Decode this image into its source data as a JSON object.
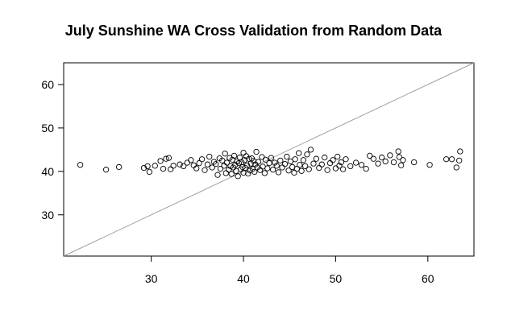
{
  "chart_data": {
    "type": "scatter",
    "title": "July Sunshine WA Cross Validation from Random Data",
    "xlabel": "",
    "ylabel": "",
    "xlim": [
      20.5,
      65
    ],
    "ylim": [
      20.5,
      65
    ],
    "x_ticks": [
      30,
      40,
      50,
      60
    ],
    "y_ticks": [
      30,
      40,
      50,
      60
    ],
    "reference_line": {
      "type": "y=x",
      "color": "#a0a0a0"
    },
    "marker": "open-circle",
    "grid": false,
    "series": [
      {
        "points": [
          [
            22.3,
            41.5
          ],
          [
            25.1,
            40.4
          ],
          [
            26.5,
            41.0
          ],
          [
            29.2,
            40.8
          ],
          [
            29.6,
            41.2
          ],
          [
            29.8,
            39.9
          ],
          [
            30.4,
            41.3
          ],
          [
            31.0,
            42.4
          ],
          [
            31.3,
            40.6
          ],
          [
            31.6,
            42.9
          ],
          [
            31.9,
            43.1
          ],
          [
            32.1,
            40.5
          ],
          [
            32.4,
            41.3
          ],
          [
            33.1,
            41.6
          ],
          [
            33.5,
            41.2
          ],
          [
            33.9,
            42.0
          ],
          [
            34.3,
            42.6
          ],
          [
            34.6,
            41.4
          ],
          [
            34.9,
            40.7
          ],
          [
            35.2,
            41.9
          ],
          [
            35.5,
            42.8
          ],
          [
            35.8,
            40.3
          ],
          [
            36.1,
            41.6
          ],
          [
            36.3,
            43.4
          ],
          [
            36.6,
            40.9
          ],
          [
            36.8,
            42.2
          ],
          [
            37.0,
            41.7
          ],
          [
            37.2,
            39.2
          ],
          [
            37.4,
            43.0
          ],
          [
            37.5,
            40.6
          ],
          [
            37.7,
            42.5
          ],
          [
            37.9,
            41.3
          ],
          [
            38.0,
            44.1
          ],
          [
            38.1,
            39.6
          ],
          [
            38.2,
            42.0
          ],
          [
            38.4,
            40.4
          ],
          [
            38.5,
            43.1
          ],
          [
            38.6,
            41.2
          ],
          [
            38.7,
            39.4
          ],
          [
            38.8,
            42.7
          ],
          [
            38.9,
            40.9
          ],
          [
            39.0,
            43.6
          ],
          [
            39.1,
            41.5
          ],
          [
            39.2,
            40.1
          ],
          [
            39.3,
            42.3
          ],
          [
            39.4,
            38.9
          ],
          [
            39.5,
            41.9
          ],
          [
            39.6,
            43.2
          ],
          [
            39.7,
            40.5
          ],
          [
            39.8,
            42.1
          ],
          [
            39.9,
            41.0
          ],
          [
            40.0,
            44.3
          ],
          [
            40.0,
            39.7
          ],
          [
            40.1,
            42.6
          ],
          [
            40.2,
            40.8
          ],
          [
            40.3,
            43.5
          ],
          [
            40.4,
            41.4
          ],
          [
            40.5,
            39.5
          ],
          [
            40.6,
            42.9
          ],
          [
            40.7,
            40.2
          ],
          [
            40.8,
            41.8
          ],
          [
            40.9,
            43.0
          ],
          [
            41.0,
            40.6
          ],
          [
            41.1,
            42.4
          ],
          [
            41.2,
            39.9
          ],
          [
            41.3,
            41.6
          ],
          [
            41.4,
            44.5
          ],
          [
            41.5,
            40.9
          ],
          [
            41.6,
            42.2
          ],
          [
            41.8,
            40.3
          ],
          [
            42.0,
            43.3
          ],
          [
            42.1,
            41.1
          ],
          [
            42.3,
            39.6
          ],
          [
            42.4,
            42.7
          ],
          [
            42.6,
            40.7
          ],
          [
            42.8,
            41.9
          ],
          [
            43.0,
            43.1
          ],
          [
            43.2,
            40.4
          ],
          [
            43.4,
            42.0
          ],
          [
            43.6,
            41.3
          ],
          [
            43.8,
            39.8
          ],
          [
            44.0,
            42.5
          ],
          [
            44.2,
            40.9
          ],
          [
            44.5,
            41.7
          ],
          [
            44.7,
            43.4
          ],
          [
            44.9,
            40.2
          ],
          [
            45.1,
            42.3
          ],
          [
            45.3,
            41.0
          ],
          [
            45.5,
            39.7
          ],
          [
            45.6,
            42.8
          ],
          [
            45.8,
            40.6
          ],
          [
            46.0,
            44.2
          ],
          [
            46.1,
            41.5
          ],
          [
            46.3,
            40.1
          ],
          [
            46.5,
            42.6
          ],
          [
            46.7,
            41.2
          ],
          [
            46.9,
            43.9
          ],
          [
            47.1,
            40.5
          ],
          [
            47.3,
            45.0
          ],
          [
            47.6,
            41.8
          ],
          [
            47.9,
            42.9
          ],
          [
            48.2,
            40.8
          ],
          [
            48.5,
            41.6
          ],
          [
            48.8,
            43.2
          ],
          [
            49.1,
            40.3
          ],
          [
            49.4,
            41.9
          ],
          [
            49.7,
            42.6
          ],
          [
            50.0,
            40.7
          ],
          [
            50.2,
            43.4
          ],
          [
            50.4,
            41.3
          ],
          [
            50.6,
            42.1
          ],
          [
            50.8,
            40.5
          ],
          [
            51.1,
            42.8
          ],
          [
            51.6,
            41.2
          ],
          [
            52.2,
            42.0
          ],
          [
            52.8,
            41.5
          ],
          [
            53.3,
            40.6
          ],
          [
            53.7,
            43.6
          ],
          [
            54.1,
            42.9
          ],
          [
            54.6,
            41.8
          ],
          [
            55.0,
            43.2
          ],
          [
            55.4,
            42.3
          ],
          [
            55.9,
            43.7
          ],
          [
            56.3,
            42.1
          ],
          [
            56.8,
            44.6
          ],
          [
            56.9,
            43.3
          ],
          [
            57.1,
            41.4
          ],
          [
            57.3,
            42.6
          ],
          [
            58.5,
            42.1
          ],
          [
            60.2,
            41.5
          ],
          [
            62.0,
            42.8
          ],
          [
            62.6,
            42.8
          ],
          [
            63.1,
            40.9
          ],
          [
            63.4,
            42.5
          ],
          [
            63.5,
            44.6
          ]
        ]
      }
    ]
  }
}
